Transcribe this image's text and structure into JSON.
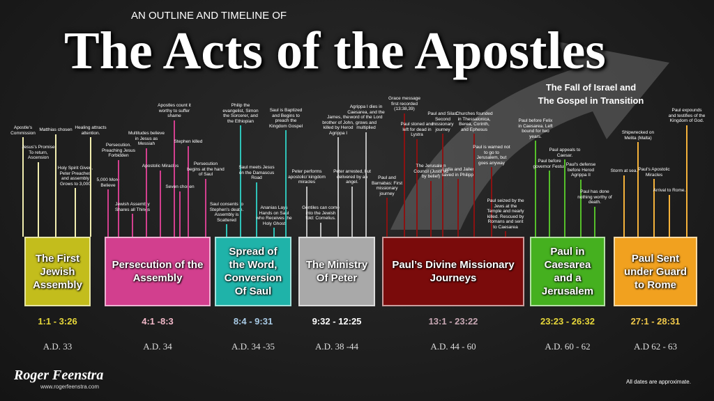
{
  "header": {
    "kicker": "AN OUTLINE AND TIMELINE OF",
    "title": "The Acts of the Apostles",
    "subtitle": [
      "The Fall of Israel and",
      "The Gospel in Transition"
    ]
  },
  "sections": [
    {
      "label": "The First Jewish Assembly",
      "reference": "1:1 - 3:26",
      "date": "A.D. 33",
      "color": "#c3bd1c",
      "line_color": "#f2eeb0",
      "ref_color": "#e8d83a",
      "events": [
        "Apostle's Commission",
        "Jesus's Promise To return, Ascension",
        "Matthias chosen",
        "Holy Spirit Given, Peter Preaches and assembly Grows to 3,000",
        "Healing attracts attention."
      ]
    },
    {
      "label": "Persecution of the Assembly",
      "reference": "4:1 -8:3",
      "date": "A.D. 34",
      "color": "#d23f8e",
      "line_color": "#d23f8e",
      "ref_color": "#f3b9c9",
      "events": [
        "5,000 More Believe",
        "Persecution. Preaching Jesus Forbidden",
        "Jewish Assembly Shares all Things",
        "Multitudes believe in Jesus as Messiah",
        "Apostolic Miracles",
        "Apostles count it worthy to suffer shame",
        "Seven chosen",
        "Stephen killed",
        "Persecution begins at the hand of Saul"
      ]
    },
    {
      "label": "Spread of the Word, Conversion Of Saul",
      "reference": "8:4 - 9:31",
      "date": "A.D. 34 -35",
      "color": "#1fb3a9",
      "line_color": "#2fc3b8",
      "ref_color": "#a9cbe6",
      "events": [
        "Saul consents to Stephen's death. Assembly is Scattered",
        "Philip the evangelist, Simon the Sorcerer, and the Ethiopian",
        "Saul meets Jesus on the Damascus Road",
        "Ananias Lays Hands on Saul who Receives the Holy Ghost",
        "Saul is Baptized and Begins to preach the Kingdom Gospel"
      ]
    },
    {
      "label": "The Ministry Of Peter",
      "reference": "9:32 - 12:25",
      "date": "A.D. 38 -44",
      "color": "#a9a9a9",
      "line_color": "#bdbdbd",
      "ref_color": "#ffffff",
      "events": [
        "Peter performs apostolic/ kingdom miracles",
        "Gentiles can come into the Jewish fold: Cornelius.",
        "James, the brother of John, killed by Herod Agrippa I",
        "Peter arrested, but delivered by an angel.",
        "Agrippa I dies in Caesarea, and the word of the Lord grows and multiplied"
      ]
    },
    {
      "label": "Paul’s Divine Missionary Journeys",
      "reference": "13:1 - 23:22",
      "date": "A.D. 44 - 60",
      "color": "#7a0b0b",
      "line_color": "#8a1212",
      "ref_color": "#c8a8b4",
      "events": [
        "Paul and Barnabas: First missionary journey",
        "Grace message first recorded (13:38,39)",
        "Paul stoned and left for dead in Lystra",
        "The Jerusalem Council (Justified by belief)",
        "Paul and Silas: Second missionary journey",
        "Lydia and Jailer saved in Philippi",
        "Churches founded in Thessalonica, Berea, Corinth, and Ephesus",
        "Paul is warned not to go to Jerusalem, but goes anyway",
        "Paul seized by the Jews at the Temple and nearly killed. Rescued by Romans and sent to Caesarea"
      ]
    },
    {
      "label": "Paul in Caesarea and a Jerusalem",
      "reference": "23:23 - 26:32",
      "date": "A.D. 60 - 62",
      "color": "#45b01f",
      "line_color": "#55c02a",
      "ref_color": "#e8d83a",
      "events": [
        "Paul before Felix in Caesarea. Left bound for two years.",
        "Paul before governor Festus",
        "Paul appeals to Caesar.",
        "Paul's defense before Herod Agrippa II",
        "Paul has done nothing worthy of death."
      ]
    },
    {
      "label": "Paul Sent under Guard to Rome",
      "reference": "27:1 - 28:31",
      "date": "A.D  62 - 63",
      "color": "#f1a11f",
      "line_color": "#f5b23a",
      "ref_color": "#f0c84a",
      "events": [
        "Storm at sea.",
        "Shipwrecked on Melita (Malta)",
        "Paul's Apostolic Miracles",
        "Arrival to Rome.",
        "Paul expounds and testifies of the Kingdom of God."
      ]
    }
  ],
  "footer": {
    "author": "Roger Feenstra",
    "website": "www.rogerfeenstra.com",
    "note": "All dates are approximate."
  }
}
